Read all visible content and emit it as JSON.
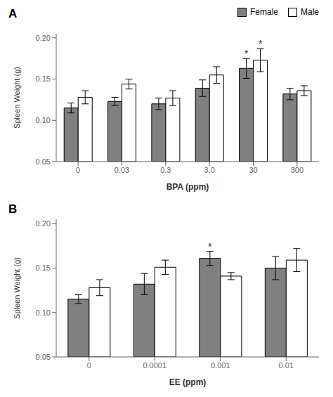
{
  "chart_data": [
    {
      "type": "bar",
      "title": "A",
      "xlabel": "BPA (ppm)",
      "ylabel": "Spleen Weight (g)",
      "categories": [
        "0",
        "0.03",
        "0.3",
        "3.0",
        "30",
        "300"
      ],
      "series": [
        {
          "name": "Female",
          "color": "#808080",
          "values": [
            0.115,
            0.123,
            0.12,
            0.139,
            0.163,
            0.132
          ],
          "errors": [
            0.006,
            0.005,
            0.007,
            0.01,
            0.012,
            0.007
          ]
        },
        {
          "name": "Male",
          "color": "#ffffff",
          "values": [
            0.128,
            0.144,
            0.127,
            0.155,
            0.173,
            0.136
          ],
          "errors": [
            0.008,
            0.006,
            0.009,
            0.01,
            0.014,
            0.006
          ]
        }
      ],
      "annotations": [
        {
          "text": "*",
          "category": "30",
          "series": "Female"
        },
        {
          "text": "*",
          "category": "30",
          "series": "Male"
        }
      ],
      "ylim": [
        0.05,
        0.205
      ],
      "yticks": [
        0.05,
        {
          "value": 0.1,
          "label": "0.10"
        },
        0.15,
        {
          "value": 0.2,
          "label": "0.20"
        }
      ],
      "grid": false,
      "legend": "upper right"
    },
    {
      "type": "bar",
      "title": "B",
      "xlabel": "EE (ppm)",
      "ylabel": "Spleen Weight (g)",
      "categories": [
        "0",
        "0.0001",
        "0.001",
        "0.01"
      ],
      "series": [
        {
          "name": "Female",
          "color": "#808080",
          "values": [
            0.115,
            0.132,
            0.161,
            0.15
          ],
          "errors": [
            0.005,
            0.012,
            0.008,
            0.013
          ]
        },
        {
          "name": "Male",
          "color": "#ffffff",
          "values": [
            0.128,
            0.151,
            0.141,
            0.159
          ],
          "errors": [
            0.009,
            0.008,
            0.004,
            0.013
          ]
        }
      ],
      "annotations": [
        {
          "text": "*",
          "category": "0.001",
          "series": "Female"
        }
      ],
      "ylim": [
        0.05,
        0.205
      ],
      "yticks": [
        0.05,
        {
          "value": 0.1,
          "label": "0.10"
        },
        0.15,
        {
          "value": 0.2,
          "label": "0.20"
        }
      ],
      "grid": false
    }
  ]
}
